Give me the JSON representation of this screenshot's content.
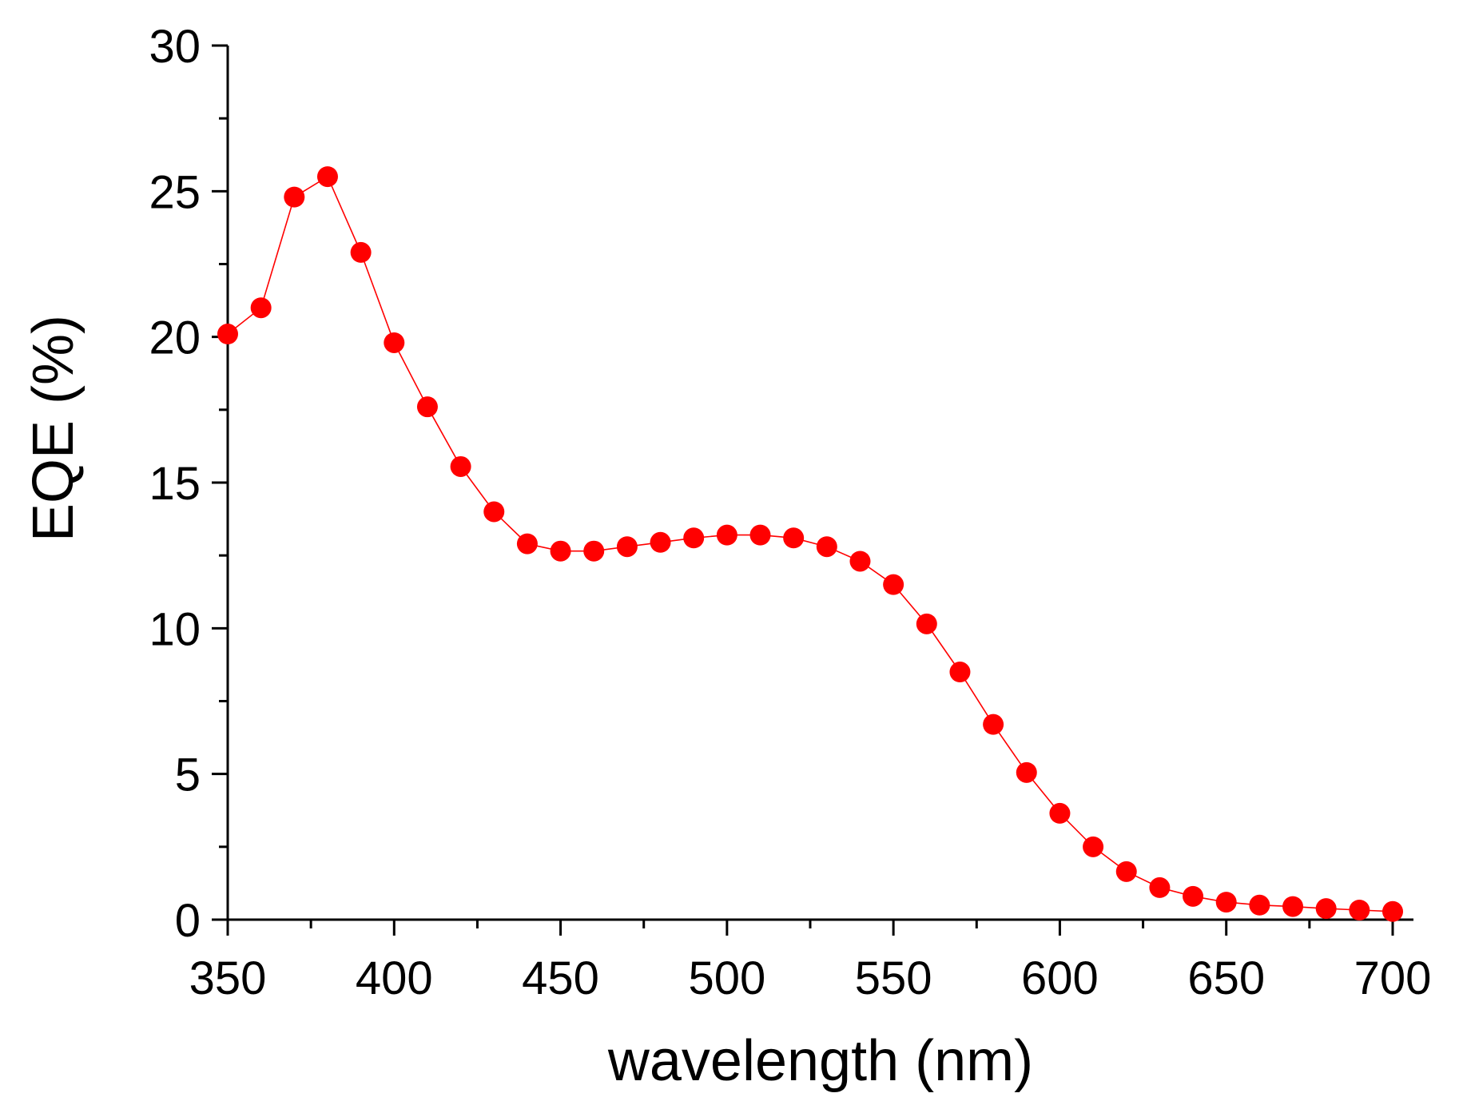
{
  "chart_data": {
    "type": "line",
    "title": "",
    "xlabel": "wavelength (nm)",
    "ylabel": "EQE (%)",
    "xlim": [
      350,
      703
    ],
    "ylim": [
      0,
      30
    ],
    "x_ticks": [
      350,
      400,
      450,
      500,
      550,
      600,
      650,
      700
    ],
    "y_ticks": [
      0,
      5,
      10,
      15,
      20,
      25,
      30
    ],
    "grid": false,
    "legend": "none",
    "colors": {
      "series": "#ff0000",
      "axis": "#000000"
    },
    "series": [
      {
        "name": "EQE",
        "marker": "circle",
        "x": [
          350,
          360,
          370,
          380,
          390,
          400,
          410,
          420,
          430,
          440,
          450,
          460,
          470,
          480,
          490,
          500,
          510,
          520,
          530,
          540,
          550,
          560,
          570,
          580,
          590,
          600,
          610,
          620,
          630,
          640,
          650,
          660,
          670,
          680,
          690,
          700
        ],
        "y": [
          20.1,
          21.0,
          24.8,
          25.5,
          22.9,
          19.8,
          17.6,
          15.55,
          14.0,
          12.9,
          12.65,
          12.65,
          12.8,
          12.95,
          13.1,
          13.2,
          13.2,
          13.1,
          12.8,
          12.3,
          11.5,
          10.15,
          8.5,
          6.7,
          5.05,
          3.65,
          2.5,
          1.65,
          1.1,
          0.8,
          0.6,
          0.5,
          0.45,
          0.38,
          0.33,
          0.28
        ]
      }
    ]
  }
}
